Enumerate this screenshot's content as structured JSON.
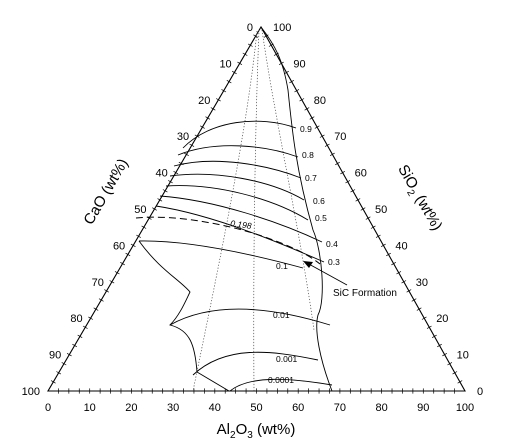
{
  "diagram": {
    "type": "ternary",
    "axes": {
      "bottom": {
        "label_main": "Al",
        "label_sub1": "2",
        "label_mid": "O",
        "label_sub2": "3",
        "label_tail": " (wt%)"
      },
      "left": {
        "label": "CaO (wt%)"
      },
      "right": {
        "label_main": "SiO",
        "label_sub": "2",
        "label_tail": " (wt%)"
      },
      "bottom_ticks": [
        "0",
        "10",
        "20",
        "30",
        "40",
        "50",
        "60",
        "70",
        "80",
        "90",
        "100"
      ],
      "left_ticks": [
        "0",
        "10",
        "20",
        "30",
        "40",
        "50",
        "60",
        "70",
        "80",
        "90",
        "100"
      ],
      "right_ticks": [
        "0",
        "10",
        "20",
        "30",
        "40",
        "50",
        "60",
        "70",
        "80",
        "90",
        "100"
      ]
    },
    "isobar_labels": [
      "0.9",
      "0.8",
      "0.7",
      "0.6",
      "0.5",
      "0.4",
      "0.3",
      "0.198",
      "0.1",
      "0.01",
      "0.001",
      "0.0001"
    ],
    "annotation": "SiC Formation"
  }
}
